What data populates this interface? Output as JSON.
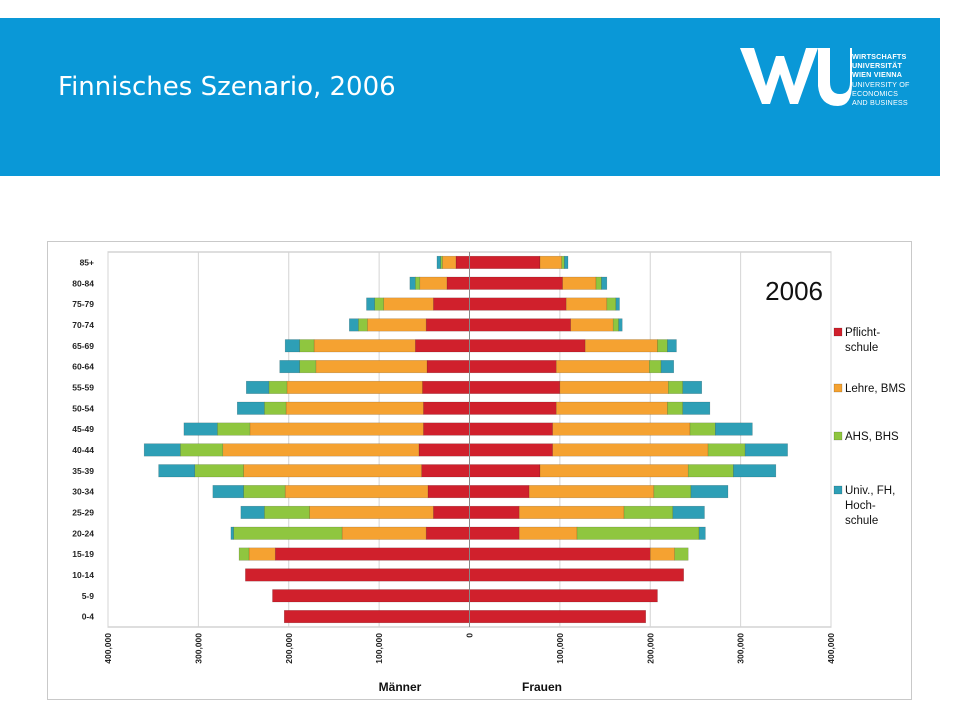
{
  "header": {
    "title": "Finnisches Szenario, 2006",
    "logo": {
      "monogram": "WU",
      "lines": [
        "WIRTSCHAFTS",
        "UNIVERSITÄT",
        "WIEN VIENNA",
        "UNIVERSITY OF",
        "ECONOMICS",
        "AND BUSINESS"
      ]
    }
  },
  "colors": {
    "header_bg": "#0a98d7",
    "pflicht": "#d0202c",
    "lehre": "#f5a231",
    "ahs": "#8fc63f",
    "univ": "#2e9fb6"
  },
  "chart_data": {
    "type": "bar",
    "subtype": "population-pyramid",
    "title": "2006",
    "xlabel_left": "Männer",
    "xlabel_right": "Frauen",
    "xlim": [
      -400000,
      400000
    ],
    "x_tick_values": [
      -400000,
      -300000,
      -200000,
      -100000,
      0,
      100000,
      200000,
      300000,
      400000
    ],
    "x_tick_labels": [
      "400,000",
      "300,000",
      "200,000",
      "100,000",
      "0",
      "100,000",
      "200,000",
      "300,000",
      "400,000"
    ],
    "grid": true,
    "legend_position": "right",
    "categories": [
      "85+",
      "80-84",
      "75-79",
      "70-74",
      "65-69",
      "60-64",
      "55-59",
      "50-54",
      "45-49",
      "40-44",
      "35-39",
      "30-34",
      "25-29",
      "20-24",
      "15-19",
      "10-14",
      "5-9",
      "0-4"
    ],
    "series": [
      {
        "name": "Pflicht-schule",
        "label_lines": [
          "Pflicht-",
          "schule"
        ],
        "men": [
          15000,
          25000,
          40000,
          48000,
          60000,
          47000,
          52000,
          51000,
          51000,
          56000,
          53000,
          46000,
          40000,
          48000,
          215000,
          248000,
          218000,
          205000
        ],
        "women": [
          78000,
          103000,
          107000,
          112000,
          128000,
          96000,
          100000,
          96000,
          92000,
          92000,
          78000,
          66000,
          55000,
          55000,
          200000,
          237000,
          208000,
          195000
        ]
      },
      {
        "name": "Lehre, BMS",
        "label_lines": [
          "Lehre, BMS"
        ],
        "men": [
          15000,
          30000,
          55000,
          65000,
          112000,
          123000,
          150000,
          152000,
          192000,
          217000,
          197000,
          158000,
          137000,
          93000,
          29000,
          0,
          0,
          0
        ],
        "women": [
          24000,
          37000,
          45000,
          47000,
          80000,
          103000,
          120000,
          123000,
          152000,
          172000,
          164000,
          138000,
          116000,
          64000,
          27000,
          0,
          0,
          0
        ]
      },
      {
        "name": "AHS, BHS",
        "label_lines": [
          "AHS, BHS"
        ],
        "men": [
          2000,
          5000,
          10000,
          10000,
          16000,
          18000,
          20000,
          24000,
          36000,
          47000,
          54000,
          46000,
          50000,
          120000,
          11000,
          0,
          0,
          0
        ],
        "women": [
          3000,
          6000,
          10000,
          6000,
          11000,
          13000,
          16000,
          17000,
          28000,
          41000,
          50000,
          41000,
          54000,
          135000,
          15000,
          0,
          0,
          0
        ]
      },
      {
        "name": "Univ., FH, Hoch-schule",
        "label_lines": [
          "Univ., FH,",
          "Hoch-",
          "schule"
        ],
        "men": [
          4000,
          6000,
          9000,
          10000,
          16000,
          22000,
          25000,
          30000,
          37000,
          40000,
          40000,
          34000,
          26000,
          3000,
          0,
          0,
          0,
          0
        ],
        "women": [
          4000,
          6000,
          4000,
          4000,
          10000,
          14000,
          21000,
          30000,
          41000,
          47000,
          47000,
          41000,
          35000,
          7000,
          0,
          0,
          0,
          0
        ]
      }
    ]
  }
}
